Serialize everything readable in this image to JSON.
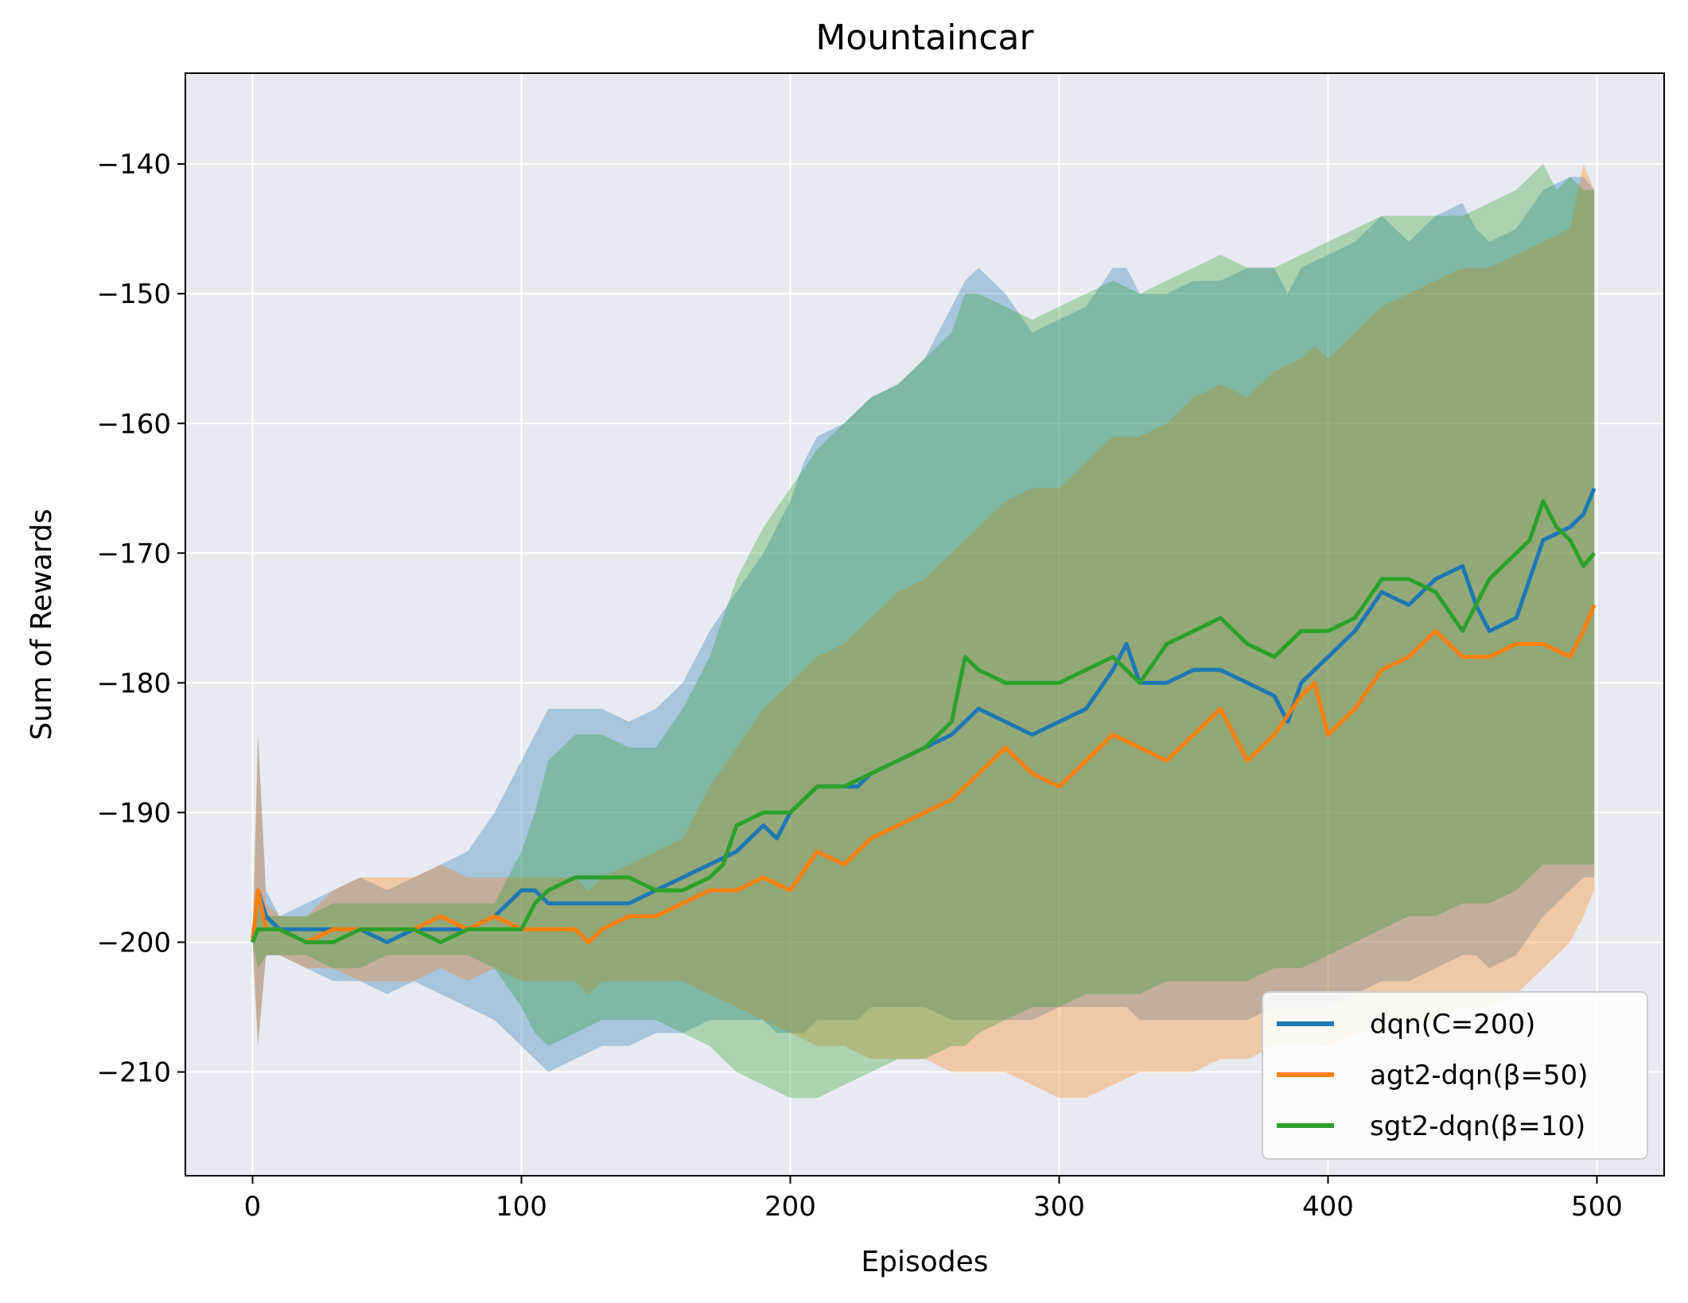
{
  "chart_data": {
    "type": "line",
    "title": "Mountaincar",
    "xlabel": "Episodes",
    "ylabel": "Sum of Rewards",
    "xlim": [
      -25,
      525
    ],
    "ylim": [
      -218,
      -133
    ],
    "xticks": [
      0,
      100,
      200,
      300,
      400,
      500
    ],
    "yticks": [
      -140,
      -150,
      -160,
      -170,
      -180,
      -190,
      -200,
      -210
    ],
    "xtick_labels": [
      "0",
      "100",
      "200",
      "300",
      "400",
      "500"
    ],
    "ytick_labels": [
      "−140",
      "−150",
      "−160",
      "−170",
      "−180",
      "−190",
      "−200",
      "−210"
    ],
    "grid": true,
    "background": "#e7eaf0",
    "legend_position": "lower-right",
    "series": [
      {
        "name": "dqn(C=200)",
        "color": "#1f77b4",
        "x": [
          0,
          2,
          5,
          10,
          20,
          30,
          40,
          50,
          60,
          70,
          80,
          90,
          95,
          100,
          105,
          110,
          120,
          130,
          140,
          150,
          160,
          170,
          180,
          190,
          195,
          200,
          205,
          210,
          220,
          225,
          230,
          240,
          250,
          260,
          265,
          270,
          280,
          290,
          300,
          310,
          320,
          325,
          330,
          340,
          350,
          360,
          370,
          380,
          385,
          390,
          400,
          410,
          420,
          430,
          440,
          450,
          455,
          460,
          470,
          480,
          490,
          495,
          499
        ],
        "y": [
          -200,
          -196,
          -198,
          -199,
          -199,
          -199,
          -199,
          -200,
          -199,
          -199,
          -199,
          -198,
          -197,
          -196,
          -196,
          -197,
          -197,
          -197,
          -197,
          -196,
          -195,
          -194,
          -193,
          -191,
          -192,
          -190,
          -189,
          -188,
          -188,
          -188,
          -187,
          -186,
          -185,
          -184,
          -183,
          -182,
          -183,
          -184,
          -183,
          -182,
          -179,
          -177,
          -180,
          -180,
          -179,
          -179,
          -180,
          -181,
          -183,
          -180,
          -178,
          -176,
          -173,
          -174,
          -172,
          -171,
          -174,
          -176,
          -175,
          -169,
          -168,
          -167,
          -165
        ],
        "upper": [
          -200,
          -184,
          -196,
          -198,
          -197,
          -196,
          -195,
          -196,
          -195,
          -194,
          -193,
          -190,
          -188,
          -186,
          -184,
          -182,
          -182,
          -182,
          -183,
          -182,
          -180,
          -176,
          -173,
          -170,
          -168,
          -166,
          -163,
          -161,
          -160,
          -159,
          -158,
          -157,
          -155,
          -151,
          -149,
          -148,
          -150,
          -153,
          -152,
          -151,
          -148,
          -148,
          -150,
          -150,
          -149,
          -149,
          -148,
          -148,
          -150,
          -148,
          -147,
          -146,
          -144,
          -146,
          -144,
          -143,
          -145,
          -146,
          -145,
          -142,
          -141,
          -141,
          -142
        ],
        "lower": [
          -200,
          -208,
          -201,
          -201,
          -202,
          -203,
          -203,
          -204,
          -203,
          -204,
          -205,
          -206,
          -207,
          -208,
          -209,
          -210,
          -209,
          -208,
          -208,
          -207,
          -207,
          -206,
          -206,
          -206,
          -207,
          -207,
          -207,
          -206,
          -206,
          -206,
          -205,
          -205,
          -205,
          -206,
          -206,
          -206,
          -206,
          -206,
          -205,
          -205,
          -205,
          -205,
          -206,
          -206,
          -206,
          -206,
          -206,
          -205,
          -205,
          -205,
          -205,
          -204,
          -203,
          -203,
          -202,
          -201,
          -201,
          -202,
          -201,
          -198,
          -196,
          -195,
          -195
        ]
      },
      {
        "name": "agt2-dqn(β=50)",
        "color": "#ff7f0e",
        "x": [
          0,
          2,
          5,
          10,
          20,
          30,
          40,
          50,
          60,
          70,
          80,
          90,
          100,
          110,
          120,
          125,
          130,
          140,
          150,
          160,
          170,
          180,
          190,
          200,
          210,
          220,
          230,
          240,
          250,
          260,
          270,
          280,
          290,
          300,
          310,
          320,
          330,
          340,
          350,
          360,
          370,
          380,
          390,
          395,
          400,
          410,
          420,
          430,
          440,
          450,
          460,
          470,
          480,
          490,
          495,
          499
        ],
        "y": [
          -200,
          -196,
          -199,
          -199,
          -200,
          -199,
          -199,
          -199,
          -199,
          -198,
          -199,
          -198,
          -199,
          -199,
          -199,
          -200,
          -199,
          -198,
          -198,
          -197,
          -196,
          -196,
          -195,
          -196,
          -193,
          -194,
          -192,
          -191,
          -190,
          -189,
          -187,
          -185,
          -187,
          -188,
          -186,
          -184,
          -185,
          -186,
          -184,
          -182,
          -186,
          -184,
          -181,
          -180,
          -184,
          -182,
          -179,
          -178,
          -176,
          -178,
          -178,
          -177,
          -177,
          -178,
          -176,
          -174
        ],
        "upper": [
          -200,
          -184,
          -197,
          -198,
          -198,
          -196,
          -195,
          -195,
          -195,
          -194,
          -195,
          -195,
          -195,
          -195,
          -195,
          -196,
          -195,
          -194,
          -193,
          -192,
          -188,
          -185,
          -182,
          -180,
          -178,
          -177,
          -175,
          -173,
          -172,
          -170,
          -168,
          -166,
          -165,
          -165,
          -163,
          -161,
          -161,
          -160,
          -158,
          -157,
          -158,
          -156,
          -155,
          -154,
          -155,
          -153,
          -151,
          -150,
          -149,
          -148,
          -148,
          -147,
          -146,
          -145,
          -140,
          -142
        ],
        "lower": [
          -200,
          -208,
          -201,
          -201,
          -202,
          -202,
          -203,
          -203,
          -203,
          -202,
          -203,
          -202,
          -203,
          -203,
          -203,
          -204,
          -203,
          -203,
          -203,
          -203,
          -204,
          -205,
          -206,
          -207,
          -208,
          -208,
          -209,
          -209,
          -209,
          -210,
          -210,
          -210,
          -211,
          -212,
          -212,
          -211,
          -210,
          -210,
          -210,
          -209,
          -209,
          -208,
          -208,
          -208,
          -208,
          -207,
          -207,
          -206,
          -206,
          -205,
          -205,
          -204,
          -202,
          -200,
          -198,
          -196
        ]
      },
      {
        "name": "sgt2-dqn(β=10)",
        "color": "#2ca02c",
        "x": [
          0,
          2,
          5,
          10,
          20,
          30,
          40,
          50,
          60,
          70,
          80,
          90,
          100,
          105,
          110,
          120,
          130,
          140,
          150,
          160,
          170,
          175,
          180,
          190,
          200,
          210,
          220,
          230,
          240,
          250,
          260,
          265,
          270,
          280,
          290,
          300,
          310,
          320,
          330,
          340,
          350,
          360,
          370,
          380,
          390,
          400,
          410,
          420,
          430,
          440,
          450,
          460,
          470,
          475,
          480,
          485,
          490,
          495,
          499
        ],
        "y": [
          -200,
          -199,
          -199,
          -199,
          -200,
          -200,
          -199,
          -199,
          -199,
          -200,
          -199,
          -199,
          -199,
          -197,
          -196,
          -195,
          -195,
          -195,
          -196,
          -196,
          -195,
          -194,
          -191,
          -190,
          -190,
          -188,
          -188,
          -187,
          -186,
          -185,
          -183,
          -178,
          -179,
          -180,
          -180,
          -180,
          -179,
          -178,
          -180,
          -177,
          -176,
          -175,
          -177,
          -178,
          -176,
          -176,
          -175,
          -172,
          -172,
          -173,
          -176,
          -172,
          -170,
          -169,
          -166,
          -168,
          -169,
          -171,
          -170
        ],
        "upper": [
          -200,
          -196,
          -198,
          -198,
          -198,
          -197,
          -197,
          -197,
          -197,
          -197,
          -197,
          -197,
          -193,
          -190,
          -186,
          -184,
          -184,
          -185,
          -185,
          -182,
          -178,
          -175,
          -172,
          -168,
          -165,
          -162,
          -160,
          -158,
          -157,
          -155,
          -153,
          -150,
          -150,
          -151,
          -152,
          -151,
          -150,
          -149,
          -150,
          -149,
          -148,
          -147,
          -148,
          -148,
          -147,
          -146,
          -145,
          -144,
          -144,
          -144,
          -144,
          -143,
          -142,
          -141,
          -140,
          -142,
          -141,
          -142,
          -142
        ],
        "lower": [
          -200,
          -202,
          -201,
          -201,
          -201,
          -202,
          -202,
          -201,
          -201,
          -201,
          -201,
          -202,
          -205,
          -207,
          -208,
          -207,
          -206,
          -206,
          -206,
          -207,
          -208,
          -209,
          -210,
          -211,
          -212,
          -212,
          -211,
          -210,
          -209,
          -209,
          -208,
          -208,
          -207,
          -206,
          -205,
          -205,
          -204,
          -204,
          -204,
          -203,
          -203,
          -203,
          -203,
          -202,
          -202,
          -201,
          -200,
          -199,
          -198,
          -198,
          -197,
          -197,
          -196,
          -195,
          -194,
          -194,
          -194,
          -194,
          -194
        ]
      }
    ]
  }
}
